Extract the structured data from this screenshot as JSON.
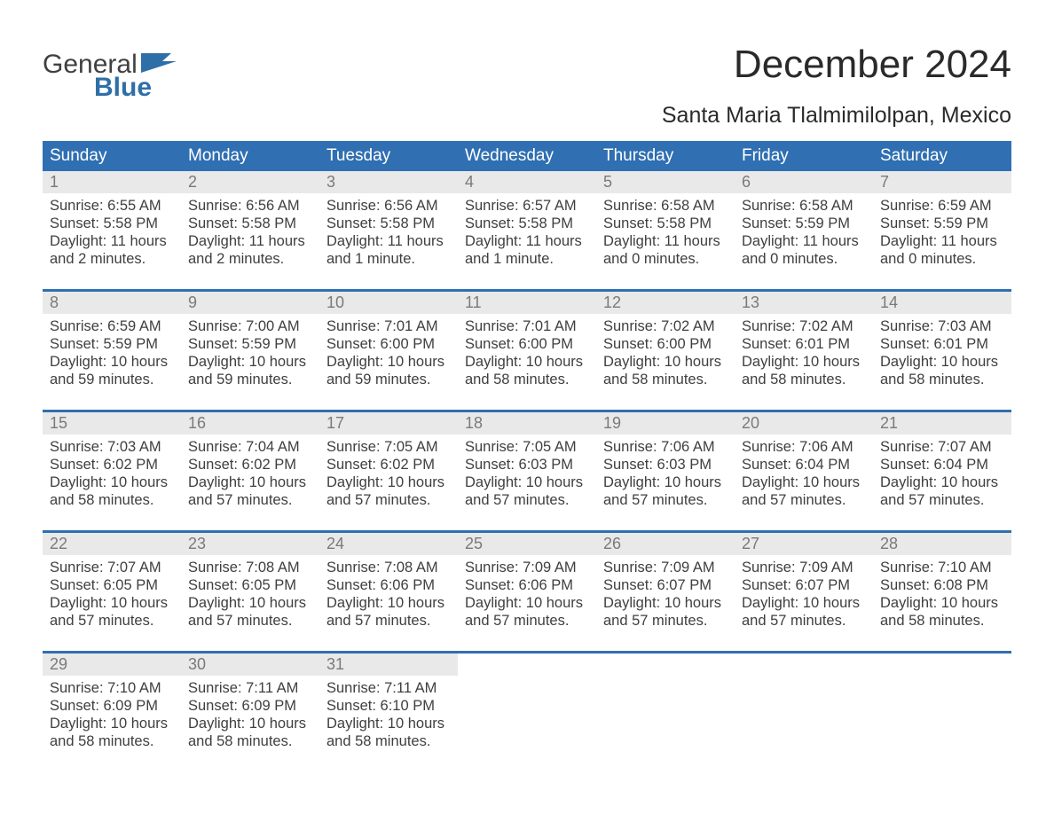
{
  "logo": {
    "word1": "General",
    "word2": "Blue"
  },
  "header": {
    "title": "December 2024",
    "location": "Santa Maria Tlalmimilolpan, Mexico"
  },
  "colors": {
    "header_bg": "#2f6fb2",
    "header_text": "#ffffff",
    "row_divider": "#2f6fb2",
    "daynum_bg": "#e9e9e9",
    "daynum_text": "#7a7a7a",
    "body_text": "#3f3f3f",
    "logo_accent": "#2f6fa8",
    "page_bg": "#ffffff"
  },
  "weekdays": [
    "Sunday",
    "Monday",
    "Tuesday",
    "Wednesday",
    "Thursday",
    "Friday",
    "Saturday"
  ],
  "weeks": [
    {
      "days": [
        {
          "n": "1",
          "sunrise": "Sunrise: 6:55 AM",
          "sunset": "Sunset: 5:58 PM",
          "d1": "Daylight: 11 hours",
          "d2": "and 2 minutes."
        },
        {
          "n": "2",
          "sunrise": "Sunrise: 6:56 AM",
          "sunset": "Sunset: 5:58 PM",
          "d1": "Daylight: 11 hours",
          "d2": "and 2 minutes."
        },
        {
          "n": "3",
          "sunrise": "Sunrise: 6:56 AM",
          "sunset": "Sunset: 5:58 PM",
          "d1": "Daylight: 11 hours",
          "d2": "and 1 minute."
        },
        {
          "n": "4",
          "sunrise": "Sunrise: 6:57 AM",
          "sunset": "Sunset: 5:58 PM",
          "d1": "Daylight: 11 hours",
          "d2": "and 1 minute."
        },
        {
          "n": "5",
          "sunrise": "Sunrise: 6:58 AM",
          "sunset": "Sunset: 5:58 PM",
          "d1": "Daylight: 11 hours",
          "d2": "and 0 minutes."
        },
        {
          "n": "6",
          "sunrise": "Sunrise: 6:58 AM",
          "sunset": "Sunset: 5:59 PM",
          "d1": "Daylight: 11 hours",
          "d2": "and 0 minutes."
        },
        {
          "n": "7",
          "sunrise": "Sunrise: 6:59 AM",
          "sunset": "Sunset: 5:59 PM",
          "d1": "Daylight: 11 hours",
          "d2": "and 0 minutes."
        }
      ]
    },
    {
      "days": [
        {
          "n": "8",
          "sunrise": "Sunrise: 6:59 AM",
          "sunset": "Sunset: 5:59 PM",
          "d1": "Daylight: 10 hours",
          "d2": "and 59 minutes."
        },
        {
          "n": "9",
          "sunrise": "Sunrise: 7:00 AM",
          "sunset": "Sunset: 5:59 PM",
          "d1": "Daylight: 10 hours",
          "d2": "and 59 minutes."
        },
        {
          "n": "10",
          "sunrise": "Sunrise: 7:01 AM",
          "sunset": "Sunset: 6:00 PM",
          "d1": "Daylight: 10 hours",
          "d2": "and 59 minutes."
        },
        {
          "n": "11",
          "sunrise": "Sunrise: 7:01 AM",
          "sunset": "Sunset: 6:00 PM",
          "d1": "Daylight: 10 hours",
          "d2": "and 58 minutes."
        },
        {
          "n": "12",
          "sunrise": "Sunrise: 7:02 AM",
          "sunset": "Sunset: 6:00 PM",
          "d1": "Daylight: 10 hours",
          "d2": "and 58 minutes."
        },
        {
          "n": "13",
          "sunrise": "Sunrise: 7:02 AM",
          "sunset": "Sunset: 6:01 PM",
          "d1": "Daylight: 10 hours",
          "d2": "and 58 minutes."
        },
        {
          "n": "14",
          "sunrise": "Sunrise: 7:03 AM",
          "sunset": "Sunset: 6:01 PM",
          "d1": "Daylight: 10 hours",
          "d2": "and 58 minutes."
        }
      ]
    },
    {
      "days": [
        {
          "n": "15",
          "sunrise": "Sunrise: 7:03 AM",
          "sunset": "Sunset: 6:02 PM",
          "d1": "Daylight: 10 hours",
          "d2": "and 58 minutes."
        },
        {
          "n": "16",
          "sunrise": "Sunrise: 7:04 AM",
          "sunset": "Sunset: 6:02 PM",
          "d1": "Daylight: 10 hours",
          "d2": "and 57 minutes."
        },
        {
          "n": "17",
          "sunrise": "Sunrise: 7:05 AM",
          "sunset": "Sunset: 6:02 PM",
          "d1": "Daylight: 10 hours",
          "d2": "and 57 minutes."
        },
        {
          "n": "18",
          "sunrise": "Sunrise: 7:05 AM",
          "sunset": "Sunset: 6:03 PM",
          "d1": "Daylight: 10 hours",
          "d2": "and 57 minutes."
        },
        {
          "n": "19",
          "sunrise": "Sunrise: 7:06 AM",
          "sunset": "Sunset: 6:03 PM",
          "d1": "Daylight: 10 hours",
          "d2": "and 57 minutes."
        },
        {
          "n": "20",
          "sunrise": "Sunrise: 7:06 AM",
          "sunset": "Sunset: 6:04 PM",
          "d1": "Daylight: 10 hours",
          "d2": "and 57 minutes."
        },
        {
          "n": "21",
          "sunrise": "Sunrise: 7:07 AM",
          "sunset": "Sunset: 6:04 PM",
          "d1": "Daylight: 10 hours",
          "d2": "and 57 minutes."
        }
      ]
    },
    {
      "days": [
        {
          "n": "22",
          "sunrise": "Sunrise: 7:07 AM",
          "sunset": "Sunset: 6:05 PM",
          "d1": "Daylight: 10 hours",
          "d2": "and 57 minutes."
        },
        {
          "n": "23",
          "sunrise": "Sunrise: 7:08 AM",
          "sunset": "Sunset: 6:05 PM",
          "d1": "Daylight: 10 hours",
          "d2": "and 57 minutes."
        },
        {
          "n": "24",
          "sunrise": "Sunrise: 7:08 AM",
          "sunset": "Sunset: 6:06 PM",
          "d1": "Daylight: 10 hours",
          "d2": "and 57 minutes."
        },
        {
          "n": "25",
          "sunrise": "Sunrise: 7:09 AM",
          "sunset": "Sunset: 6:06 PM",
          "d1": "Daylight: 10 hours",
          "d2": "and 57 minutes."
        },
        {
          "n": "26",
          "sunrise": "Sunrise: 7:09 AM",
          "sunset": "Sunset: 6:07 PM",
          "d1": "Daylight: 10 hours",
          "d2": "and 57 minutes."
        },
        {
          "n": "27",
          "sunrise": "Sunrise: 7:09 AM",
          "sunset": "Sunset: 6:07 PM",
          "d1": "Daylight: 10 hours",
          "d2": "and 57 minutes."
        },
        {
          "n": "28",
          "sunrise": "Sunrise: 7:10 AM",
          "sunset": "Sunset: 6:08 PM",
          "d1": "Daylight: 10 hours",
          "d2": "and 58 minutes."
        }
      ]
    },
    {
      "days": [
        {
          "n": "29",
          "sunrise": "Sunrise: 7:10 AM",
          "sunset": "Sunset: 6:09 PM",
          "d1": "Daylight: 10 hours",
          "d2": "and 58 minutes."
        },
        {
          "n": "30",
          "sunrise": "Sunrise: 7:11 AM",
          "sunset": "Sunset: 6:09 PM",
          "d1": "Daylight: 10 hours",
          "d2": "and 58 minutes."
        },
        {
          "n": "31",
          "sunrise": "Sunrise: 7:11 AM",
          "sunset": "Sunset: 6:10 PM",
          "d1": "Daylight: 10 hours",
          "d2": "and 58 minutes."
        },
        {
          "n": "",
          "sunrise": "",
          "sunset": "",
          "d1": "",
          "d2": ""
        },
        {
          "n": "",
          "sunrise": "",
          "sunset": "",
          "d1": "",
          "d2": ""
        },
        {
          "n": "",
          "sunrise": "",
          "sunset": "",
          "d1": "",
          "d2": ""
        },
        {
          "n": "",
          "sunrise": "",
          "sunset": "",
          "d1": "",
          "d2": ""
        }
      ]
    }
  ]
}
